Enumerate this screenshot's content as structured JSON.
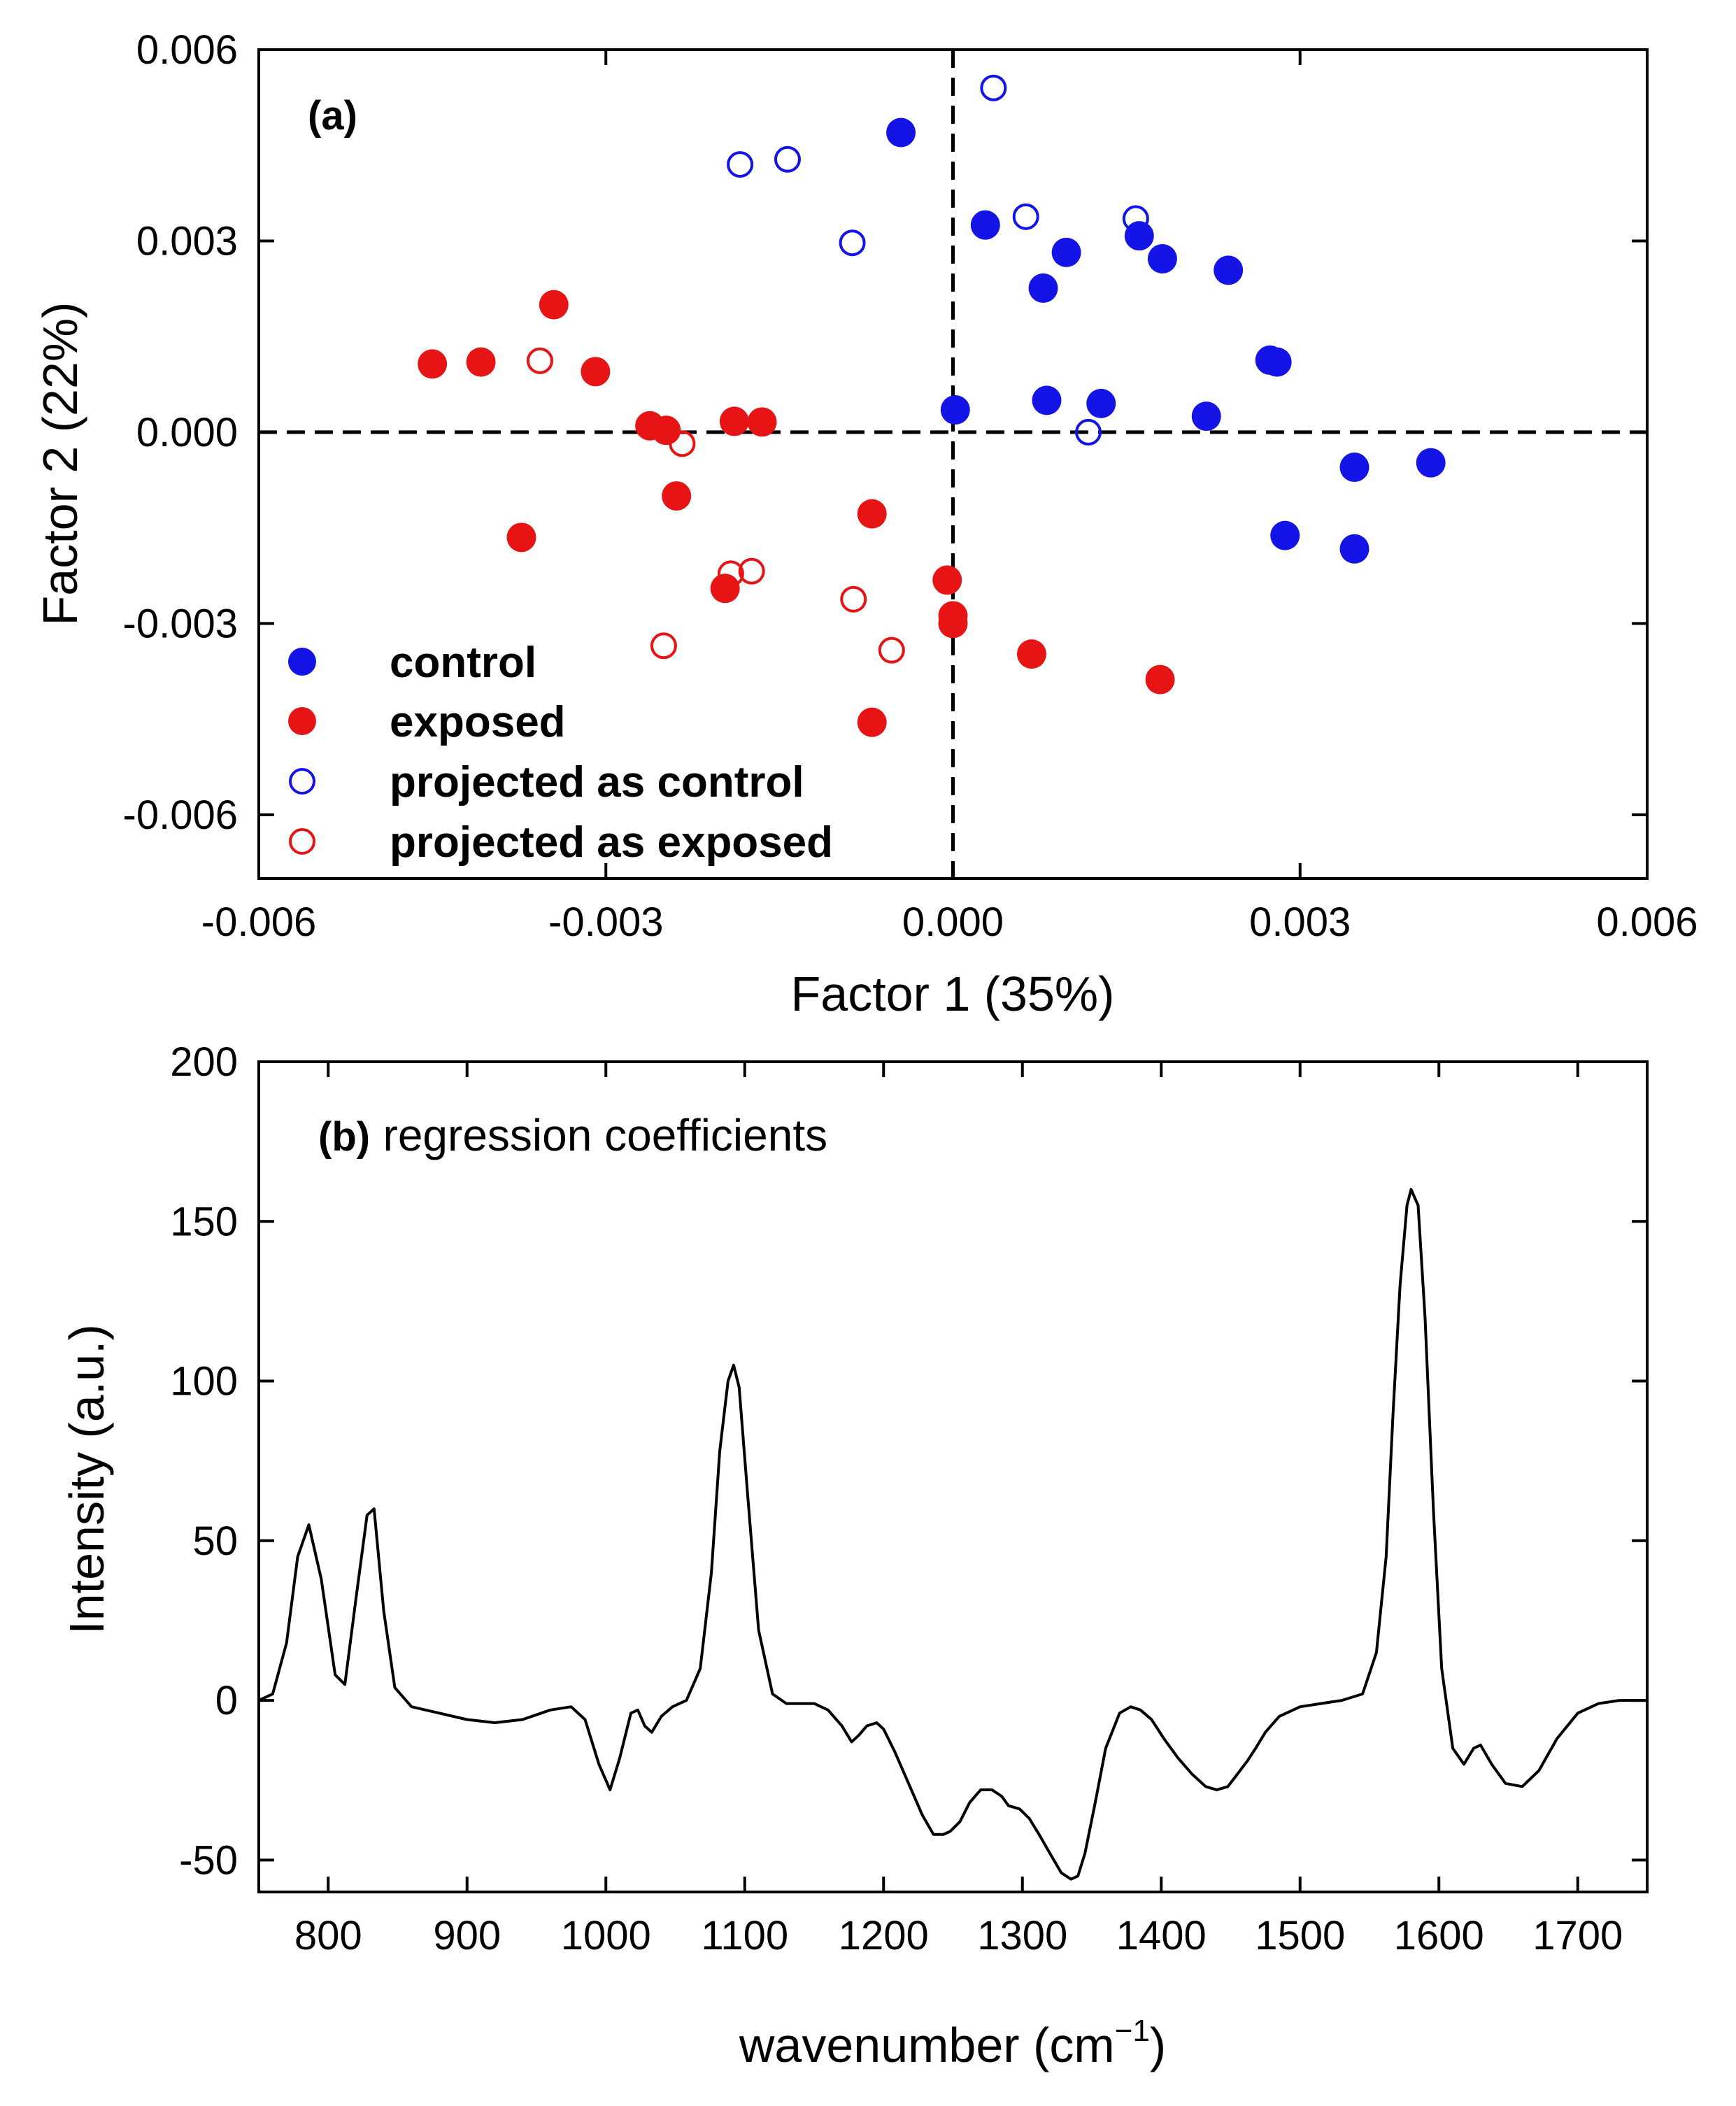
{
  "chart_data": [
    {
      "panel": "(a)",
      "type": "scatter",
      "xlabel": "Factor 1 (35%)",
      "ylabel": "Factor 2 (22%)",
      "xlim": [
        -0.006,
        0.006
      ],
      "ylim": [
        -0.007,
        0.006
      ],
      "xticks": [
        "-0.006",
        "-0.003",
        "0.000",
        "0.003",
        "0.006"
      ],
      "yticks": [
        "0.006",
        "0.003",
        "0.000",
        "-0.003",
        "-0.006"
      ],
      "xtick_values": [
        -0.006,
        -0.003,
        0.0,
        0.003,
        0.006
      ],
      "ytick_values": [
        0.006,
        0.003,
        0.0,
        -0.003,
        -0.006
      ],
      "reference_lines": {
        "x": 0.0,
        "y": 0.0,
        "style": "dashed"
      },
      "legend": {
        "position": "bottom-left"
      },
      "colors": {
        "control": "#1414e6",
        "exposed": "#e61414"
      },
      "series": [
        {
          "name": "control",
          "marker": "filled-circle",
          "color": "#1414e6",
          "points": [
            [
              -0.00045,
              0.0047
            ],
            [
              0.00028,
              0.00325
            ],
            [
              0.00098,
              0.00282
            ],
            [
              0.00078,
              0.00226
            ],
            [
              0.00161,
              0.00308
            ],
            [
              0.00181,
              0.00272
            ],
            [
              0.00238,
              0.00254
            ],
            [
              0.00274,
              0.00113
            ],
            [
              0.0028,
              0.0011
            ],
            [
              2e-05,
              0.00035
            ],
            [
              0.00081,
              0.0005
            ],
            [
              0.00128,
              0.00045
            ],
            [
              0.00219,
              0.00025
            ],
            [
              0.00347,
              -0.00055
            ],
            [
              0.00413,
              -0.00048
            ],
            [
              0.00287,
              -0.00162
            ],
            [
              0.00347,
              -0.00183
            ]
          ]
        },
        {
          "name": "exposed",
          "marker": "filled-circle",
          "color": "#e61414",
          "points": [
            [
              -0.00345,
              0.002
            ],
            [
              -0.0045,
              0.00107
            ],
            [
              -0.00408,
              0.0011
            ],
            [
              -0.00309,
              0.00095
            ],
            [
              -0.00262,
              0.0001
            ],
            [
              -0.00248,
              3e-05
            ],
            [
              -0.00189,
              0.00017
            ],
            [
              -0.00165,
              0.00016
            ],
            [
              -0.00239,
              -0.001
            ],
            [
              -0.00373,
              -0.00165
            ],
            [
              -0.0007,
              -0.00128
            ],
            [
              -0.00197,
              -0.00245
            ],
            [
              -5e-05,
              -0.00232
            ],
            [
              0.0,
              -0.00288
            ],
            [
              0.0,
              -0.003
            ],
            [
              0.00068,
              -0.00348
            ],
            [
              0.00179,
              -0.00388
            ],
            [
              -0.0007,
              -0.00455
            ]
          ]
        },
        {
          "name": "projected as control",
          "marker": "open-circle",
          "color": "#1414e6",
          "points": [
            [
              0.00035,
              0.0054
            ],
            [
              -0.00143,
              0.00428
            ],
            [
              -0.00184,
              0.0042
            ],
            [
              -0.00087,
              0.00297
            ],
            [
              0.00063,
              0.00338
            ],
            [
              0.00158,
              0.00335
            ],
            [
              0.00117,
              0.0
            ]
          ]
        },
        {
          "name": "projected as exposed",
          "marker": "open-circle",
          "color": "#e61414",
          "points": [
            [
              -0.00357,
              0.00112
            ],
            [
              -0.00234,
              -0.00018
            ],
            [
              -0.00192,
              -0.00222
            ],
            [
              -0.00174,
              -0.00218
            ],
            [
              -0.00086,
              -0.00262
            ],
            [
              -0.0025,
              -0.00335
            ],
            [
              -0.00053,
              -0.00342
            ]
          ]
        }
      ]
    },
    {
      "panel": "(b)",
      "type": "line",
      "title": "regression coefficients",
      "xlabel": "wavenumber (cm",
      "xlabel_sup": "−1",
      "xlabel_end": ")",
      "ylabel": "Intensity (a.u.)",
      "xlim": [
        750,
        1750
      ],
      "ylim": [
        -60,
        200
      ],
      "xticks": [
        "800",
        "900",
        "1000",
        "1100",
        "1200",
        "1300",
        "1400",
        "1500",
        "1600",
        "1700"
      ],
      "yticks": [
        "200",
        "150",
        "100",
        "50",
        "0",
        "-50"
      ],
      "xtick_values": [
        800,
        900,
        1000,
        1100,
        1200,
        1300,
        1400,
        1500,
        1600,
        1700
      ],
      "ytick_values": [
        200,
        150,
        100,
        50,
        0,
        -50
      ],
      "series": [
        {
          "name": "regression coefficients",
          "color": "#000000",
          "x": [
            750,
            760,
            770,
            778,
            786,
            795,
            805,
            812,
            820,
            828,
            833,
            840,
            848,
            860,
            880,
            900,
            920,
            940,
            960,
            975,
            985,
            995,
            1003,
            1010,
            1018,
            1023,
            1028,
            1033,
            1040,
            1048,
            1058,
            1068,
            1076,
            1082,
            1088,
            1092,
            1096,
            1102,
            1110,
            1120,
            1130,
            1140,
            1150,
            1160,
            1170,
            1177,
            1182,
            1188,
            1195,
            1200,
            1208,
            1218,
            1228,
            1236,
            1243,
            1248,
            1255,
            1262,
            1270,
            1278,
            1285,
            1290,
            1298,
            1305,
            1312,
            1320,
            1328,
            1335,
            1340,
            1345,
            1352,
            1360,
            1370,
            1378,
            1385,
            1393,
            1402,
            1412,
            1422,
            1432,
            1440,
            1448,
            1455,
            1462,
            1468,
            1475,
            1485,
            1500,
            1515,
            1530,
            1545,
            1555,
            1562,
            1567,
            1572,
            1577,
            1580,
            1585,
            1590,
            1596,
            1602,
            1610,
            1618,
            1625,
            1630,
            1638,
            1648,
            1660,
            1672,
            1685,
            1700,
            1715,
            1730,
            1750
          ],
          "y": [
            0,
            2,
            18,
            45,
            55,
            38,
            8,
            5,
            32,
            58,
            60,
            28,
            4,
            -2,
            -4,
            -6,
            -7,
            -6,
            -3,
            -2,
            -6,
            -20,
            -28,
            -18,
            -4,
            -3,
            -8,
            -10,
            -5,
            -2,
            0,
            10,
            40,
            78,
            100,
            105,
            98,
            65,
            22,
            2,
            -1,
            -1,
            -1,
            -3,
            -8,
            -13,
            -11,
            -8,
            -7,
            -9,
            -16,
            -26,
            -36,
            -42,
            -42,
            -41,
            -38,
            -32,
            -28,
            -28,
            -30,
            -33,
            -34,
            -37,
            -42,
            -48,
            -54,
            -56,
            -55,
            -48,
            -33,
            -15,
            -4,
            -2,
            -3,
            -6,
            -12,
            -18,
            -23,
            -27,
            -28,
            -27,
            -23,
            -19,
            -15,
            -10,
            -5,
            -2,
            -1,
            0,
            2,
            15,
            45,
            90,
            130,
            155,
            160,
            155,
            120,
            60,
            10,
            -15,
            -20,
            -15,
            -14,
            -20,
            -26,
            -27,
            -22,
            -12,
            -4,
            -1,
            0,
            0
          ]
        }
      ]
    }
  ]
}
